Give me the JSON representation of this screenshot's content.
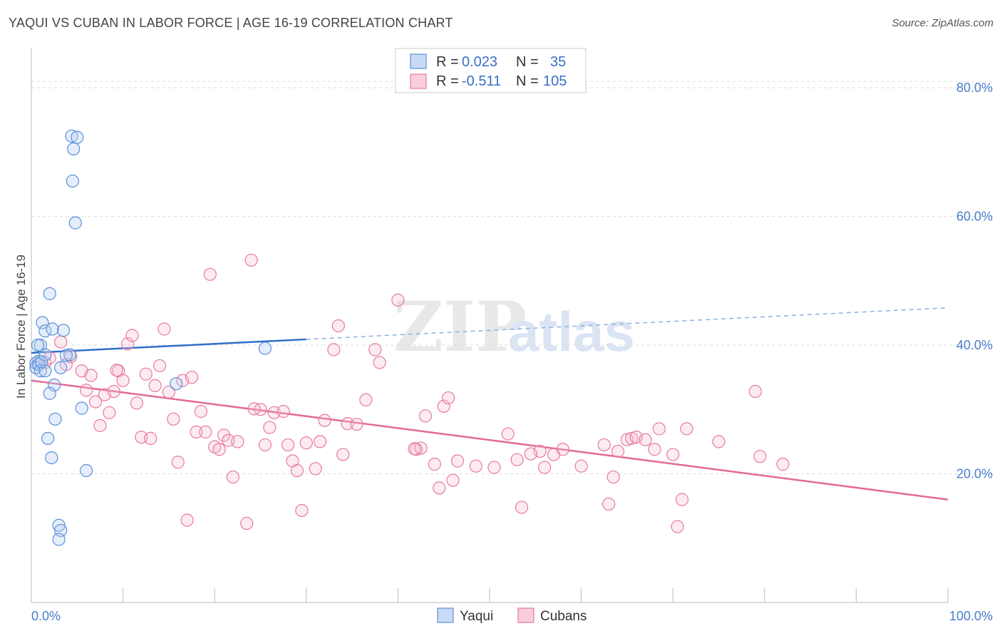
{
  "title": "YAQUI VS CUBAN IN LABOR FORCE | AGE 16-19 CORRELATION CHART",
  "source": "Source: ZipAtlas.com",
  "colors": {
    "yaqui": "#5b8fd9",
    "cubans": "#e77aa0",
    "axis_text": "#4a7cc9"
  },
  "chart_data": {
    "type": "scatter",
    "ylabel": "In Labor Force | Age 16-19",
    "xlim": [
      0,
      100
    ],
    "ylim": [
      0,
      85
    ],
    "x_tick_labels": [
      "0.0%",
      "100.0%"
    ],
    "y_ticks": [
      20,
      40,
      60,
      80
    ],
    "y_tick_labels": [
      "20.0%",
      "40.0%",
      "60.0%",
      "80.0%"
    ],
    "legend": {
      "rows": [
        {
          "r_label": "R =",
          "r_value": "0.023",
          "n_label": "N =",
          "n_value": "35"
        },
        {
          "r_label": "R =",
          "r_value": "-0.511",
          "n_label": "N =",
          "n_value": "105"
        }
      ]
    },
    "series": [
      {
        "name": "Yaqui",
        "trend": {
          "x0": 0,
          "y0": 38.8,
          "x1": 30,
          "y1": 40.9,
          "dash_x1": 100,
          "dash_y1": 45.8
        },
        "points": [
          [
            4.4,
            72.5
          ],
          [
            4.6,
            70.5
          ],
          [
            5.0,
            72.3
          ],
          [
            4.5,
            65.5
          ],
          [
            4.8,
            59.0
          ],
          [
            2.0,
            48.0
          ],
          [
            1.2,
            43.5
          ],
          [
            1.5,
            42.2
          ],
          [
            2.3,
            42.5
          ],
          [
            3.5,
            42.3
          ],
          [
            1.0,
            40.0
          ],
          [
            0.8,
            37.5
          ],
          [
            0.5,
            37.2
          ],
          [
            0.5,
            36.5
          ],
          [
            0.8,
            37.0
          ],
          [
            1.5,
            38.5
          ],
          [
            4.2,
            38.5
          ],
          [
            1.0,
            36.0
          ],
          [
            1.5,
            36.0
          ],
          [
            3.2,
            36.5
          ],
          [
            2.5,
            33.8
          ],
          [
            2.0,
            32.5
          ],
          [
            2.6,
            28.5
          ],
          [
            1.8,
            25.5
          ],
          [
            2.2,
            22.5
          ],
          [
            5.5,
            30.2
          ],
          [
            6.0,
            20.5
          ],
          [
            3.0,
            12.0
          ],
          [
            3.2,
            11.2
          ],
          [
            3.0,
            9.8
          ],
          [
            15.8,
            34.0
          ],
          [
            25.5,
            39.5
          ],
          [
            0.7,
            40.0
          ],
          [
            1.1,
            37.4
          ],
          [
            3.8,
            38.4
          ]
        ]
      },
      {
        "name": "Cubans",
        "trend": {
          "x0": 0,
          "y0": 34.5,
          "x1": 100,
          "y1": 16.0
        },
        "points": [
          [
            1.5,
            37.3
          ],
          [
            2.0,
            38.0
          ],
          [
            3.2,
            40.5
          ],
          [
            3.8,
            37.0
          ],
          [
            4.3,
            38.2
          ],
          [
            5.5,
            36.0
          ],
          [
            6.0,
            33.0
          ],
          [
            6.5,
            35.3
          ],
          [
            7.0,
            31.2
          ],
          [
            7.5,
            27.5
          ],
          [
            8.0,
            32.3
          ],
          [
            8.5,
            29.5
          ],
          [
            9.0,
            32.8
          ],
          [
            9.5,
            36.0
          ],
          [
            10.0,
            34.5
          ],
          [
            10.5,
            40.2
          ],
          [
            11.0,
            41.5
          ],
          [
            11.5,
            31.0
          ],
          [
            12.0,
            25.7
          ],
          [
            12.5,
            35.5
          ],
          [
            13.0,
            25.5
          ],
          [
            13.5,
            33.7
          ],
          [
            14.0,
            36.8
          ],
          [
            14.5,
            42.5
          ],
          [
            15.0,
            32.7
          ],
          [
            15.5,
            28.5
          ],
          [
            16.0,
            21.8
          ],
          [
            16.5,
            34.5
          ],
          [
            17.0,
            12.8
          ],
          [
            17.5,
            35.0
          ],
          [
            18.0,
            26.5
          ],
          [
            18.5,
            29.7
          ],
          [
            19.0,
            26.5
          ],
          [
            19.5,
            51.0
          ],
          [
            20.0,
            24.2
          ],
          [
            20.5,
            23.8
          ],
          [
            21.0,
            26.0
          ],
          [
            21.5,
            25.2
          ],
          [
            22.0,
            19.5
          ],
          [
            22.5,
            25.0
          ],
          [
            23.5,
            12.3
          ],
          [
            24.0,
            53.2
          ],
          [
            25.0,
            30.0
          ],
          [
            25.5,
            24.5
          ],
          [
            26.0,
            27.2
          ],
          [
            26.5,
            29.5
          ],
          [
            27.5,
            29.7
          ],
          [
            28.0,
            24.5
          ],
          [
            28.5,
            22.0
          ],
          [
            29.0,
            20.5
          ],
          [
            29.5,
            14.3
          ],
          [
            30.0,
            24.8
          ],
          [
            31.0,
            20.8
          ],
          [
            31.5,
            25.0
          ],
          [
            32.0,
            28.3
          ],
          [
            33.0,
            39.3
          ],
          [
            33.5,
            43.0
          ],
          [
            34.0,
            23.0
          ],
          [
            34.5,
            27.8
          ],
          [
            35.5,
            27.7
          ],
          [
            36.5,
            31.5
          ],
          [
            37.5,
            39.3
          ],
          [
            38.0,
            37.3
          ],
          [
            40.0,
            47.0
          ],
          [
            42.0,
            23.8
          ],
          [
            42.5,
            24.0
          ],
          [
            43.0,
            29.0
          ],
          [
            44.0,
            21.5
          ],
          [
            44.5,
            17.8
          ],
          [
            45.0,
            30.5
          ],
          [
            45.5,
            31.8
          ],
          [
            46.0,
            19.0
          ],
          [
            46.5,
            22.0
          ],
          [
            48.5,
            21.2
          ],
          [
            50.5,
            21.0
          ],
          [
            52.0,
            26.2
          ],
          [
            53.0,
            22.2
          ],
          [
            53.5,
            14.8
          ],
          [
            55.5,
            23.5
          ],
          [
            56.0,
            21.0
          ],
          [
            57.0,
            23.0
          ],
          [
            58.0,
            23.8
          ],
          [
            60.0,
            21.2
          ],
          [
            62.5,
            24.5
          ],
          [
            63.0,
            15.3
          ],
          [
            63.5,
            19.5
          ],
          [
            64.0,
            23.5
          ],
          [
            65.0,
            25.3
          ],
          [
            65.5,
            25.5
          ],
          [
            66.0,
            25.7
          ],
          [
            67.0,
            25.3
          ],
          [
            68.0,
            23.8
          ],
          [
            68.5,
            27.0
          ],
          [
            70.0,
            23.0
          ],
          [
            70.5,
            11.8
          ],
          [
            71.0,
            16.0
          ],
          [
            71.5,
            27.0
          ],
          [
            75.0,
            25.0
          ],
          [
            79.0,
            32.8
          ],
          [
            79.5,
            22.7
          ],
          [
            82.0,
            21.5
          ],
          [
            9.3,
            36.1
          ],
          [
            24.3,
            30.1
          ],
          [
            41.8,
            23.9
          ],
          [
            54.5,
            23.1
          ]
        ]
      }
    ]
  }
}
